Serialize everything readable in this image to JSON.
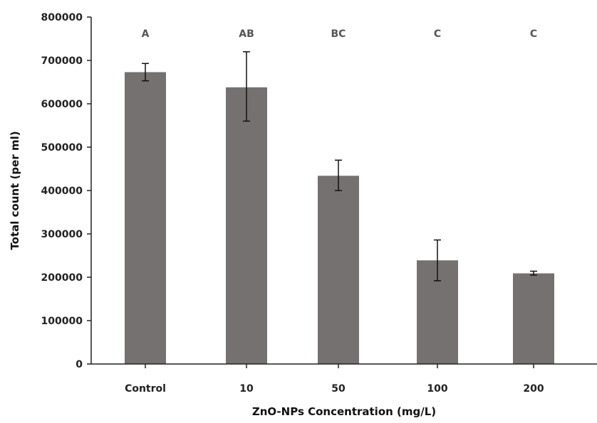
{
  "chart_data": {
    "type": "bar",
    "title": "",
    "xlabel": "ZnO-NPs Concentration (mg/L)",
    "ylabel": "Total count  (per ml)",
    "ylim": [
      0,
      800000
    ],
    "y_ticks": [
      "0",
      "100000",
      "200000",
      "300000",
      "400000",
      "500000",
      "600000",
      "700000",
      "800000"
    ],
    "grid": false,
    "categories": [
      "Control",
      "10",
      "50",
      "100",
      "200"
    ],
    "values": [
      673000,
      638000,
      434000,
      239000,
      209000
    ],
    "error_high": [
      693000,
      720000,
      470000,
      286000,
      214000
    ],
    "error_low": [
      653000,
      560000,
      400000,
      192000,
      205000
    ],
    "significance_labels": [
      "A",
      "AB",
      "BC",
      "C",
      "C"
    ],
    "colors": {
      "bar": "#757170",
      "axis": "#222222",
      "error": "#111111"
    }
  }
}
